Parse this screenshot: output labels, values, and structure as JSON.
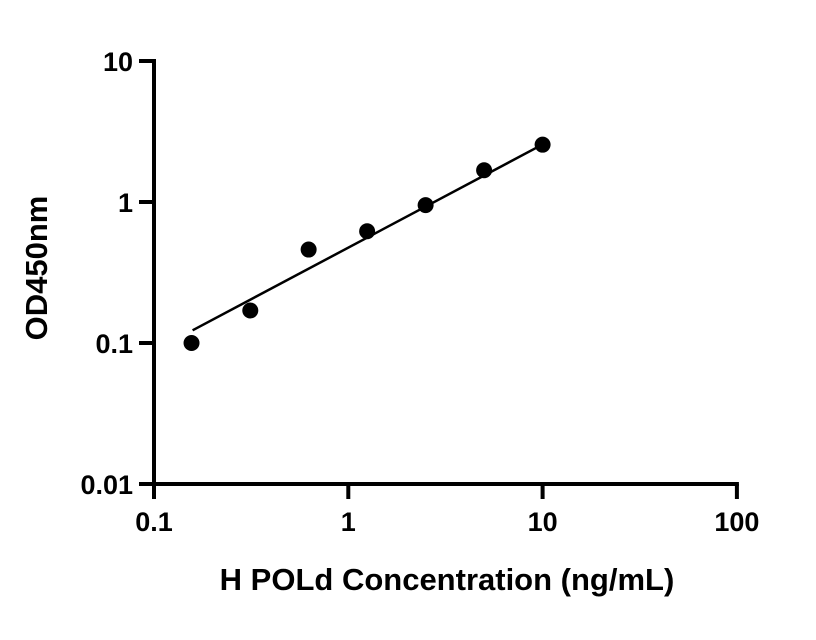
{
  "figure": {
    "background_color": "#ffffff",
    "axis_color": "#000000",
    "point_color": "#000000",
    "fit_line_color": "#000000"
  },
  "chart_data": {
    "type": "scatter",
    "title": "",
    "xlabel": "H POLd Concentration (ng/mL)",
    "ylabel": "OD450nm",
    "xscale": "log",
    "yscale": "log",
    "xlim": [
      0.1,
      100
    ],
    "ylim": [
      0.01,
      10
    ],
    "grid": "off",
    "legend": "none",
    "x_ticks": {
      "values": [
        0.1,
        1,
        10,
        100
      ],
      "labels": [
        "0.1",
        "1",
        "10",
        "100"
      ]
    },
    "y_ticks": {
      "values": [
        0.01,
        0.1,
        1,
        10
      ],
      "labels": [
        "0.01",
        "0.1",
        "1",
        "10"
      ]
    },
    "points": [
      {
        "x": 0.156,
        "y": 0.1
      },
      {
        "x": 0.313,
        "y": 0.17
      },
      {
        "x": 0.625,
        "y": 0.46
      },
      {
        "x": 1.25,
        "y": 0.62
      },
      {
        "x": 2.5,
        "y": 0.95
      },
      {
        "x": 5,
        "y": 1.68
      },
      {
        "x": 10,
        "y": 2.55
      }
    ],
    "fit_line": {
      "x_start": 0.158,
      "y_start": 0.123,
      "x_end": 10,
      "y_end": 2.56
    }
  }
}
